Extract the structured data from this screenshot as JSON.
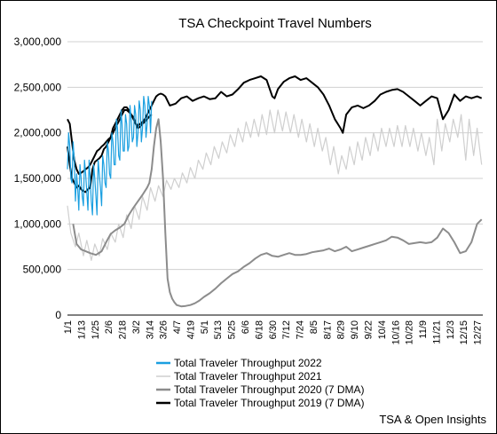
{
  "chart_data": {
    "type": "line",
    "title": "TSA Checkpoint Travel Numbers",
    "source": "TSA & Open Insights",
    "ylim": [
      0,
      3000000
    ],
    "yticks": [
      "0",
      "500,000",
      "1,000,000",
      "1,500,000",
      "2,000,000",
      "2,500,000",
      "3,000,000"
    ],
    "ytick_values": [
      0,
      500000,
      1000000,
      1500000,
      2000000,
      2500000,
      3000000
    ],
    "xticks": [
      "1/1",
      "1/13",
      "1/25",
      "2/6",
      "2/18",
      "3/2",
      "3/14",
      "3/26",
      "4/7",
      "4/19",
      "5/1",
      "5/13",
      "5/25",
      "6/6",
      "6/18",
      "6/30",
      "7/12",
      "7/24",
      "8/5",
      "8/17",
      "8/29",
      "9/10",
      "9/22",
      "10/4",
      "10/16",
      "10/28",
      "11/9",
      "11/21",
      "12/3",
      "12/15",
      "12/27"
    ],
    "xtick_days": [
      0,
      12,
      24,
      36,
      48,
      60,
      72,
      84,
      96,
      108,
      120,
      132,
      144,
      156,
      168,
      180,
      192,
      204,
      216,
      228,
      240,
      252,
      264,
      276,
      288,
      300,
      312,
      324,
      336,
      348,
      360
    ],
    "xlim": [
      0,
      365
    ],
    "grid": "horizontal",
    "legend_position": "bottom",
    "series": [
      {
        "name": "Total Traveler Throughput 2022",
        "color": "#1a9fe0",
        "x": [
          0,
          1,
          2,
          3,
          4,
          5,
          6,
          7,
          8,
          9,
          10,
          11,
          12,
          13,
          14,
          15,
          16,
          17,
          18,
          19,
          20,
          21,
          22,
          23,
          24,
          25,
          26,
          27,
          28,
          29,
          30,
          31,
          32,
          33,
          34,
          35,
          36,
          37,
          38,
          39,
          40,
          41,
          42,
          43,
          44,
          45,
          46,
          47,
          48,
          49,
          50,
          51,
          52,
          53,
          54,
          55,
          56,
          57,
          58,
          59,
          60,
          61,
          62,
          63,
          64,
          65,
          66,
          67,
          68,
          69,
          70,
          71,
          72,
          73,
          74
        ],
        "values": [
          1600000,
          2000000,
          1850000,
          1500000,
          1450000,
          1900000,
          1700000,
          1250000,
          1550000,
          1400000,
          1150000,
          1650000,
          1500000,
          1300000,
          1200000,
          1700000,
          1550000,
          1350000,
          1150000,
          1700000,
          1500000,
          1250000,
          1100000,
          1650000,
          1500000,
          1300000,
          1100000,
          1700000,
          1550000,
          1400000,
          1200000,
          1750000,
          1650000,
          1450000,
          1400000,
          1900000,
          1800000,
          1550000,
          1500000,
          2000000,
          1900000,
          1650000,
          1650000,
          2150000,
          2050000,
          1750000,
          1700000,
          2250000,
          2100000,
          1800000,
          1800000,
          2200000,
          2100000,
          1800000,
          1850000,
          2300000,
          2150000,
          1900000,
          1950000,
          2300000,
          2200000,
          1850000,
          2000000,
          2350000,
          2250000,
          1900000,
          2050000,
          2400000,
          2300000,
          1950000,
          2100000,
          2400000,
          2300000,
          2000000,
          2350000
        ]
      },
      {
        "name": "Total Traveler Throughput 2021",
        "color": "#cfcfcf",
        "x": [
          0,
          3,
          7,
          10,
          14,
          17,
          21,
          24,
          28,
          31,
          35,
          38,
          42,
          45,
          49,
          52,
          56,
          59,
          63,
          66,
          70,
          73,
          77,
          80,
          84,
          87,
          91,
          94,
          98,
          101,
          105,
          108,
          112,
          115,
          119,
          122,
          126,
          129,
          133,
          136,
          140,
          143,
          147,
          150,
          154,
          157,
          161,
          164,
          168,
          171,
          175,
          178,
          182,
          185,
          189,
          192,
          196,
          199,
          203,
          206,
          210,
          213,
          217,
          220,
          224,
          227,
          231,
          234,
          238,
          241,
          245,
          248,
          252,
          255,
          259,
          262,
          266,
          269,
          273,
          276,
          280,
          283,
          287,
          290,
          294,
          297,
          301,
          304,
          308,
          311,
          315,
          318,
          322,
          325,
          329,
          332,
          336,
          339,
          343,
          346,
          350,
          353,
          357,
          360,
          364
        ],
        "values": [
          1200000,
          900000,
          750000,
          900000,
          650000,
          820000,
          600000,
          780000,
          650000,
          840000,
          720000,
          900000,
          800000,
          1000000,
          850000,
          1100000,
          950000,
          1200000,
          1050000,
          1300000,
          1150000,
          1400000,
          1250000,
          1420000,
          1300000,
          1480000,
          1380000,
          1500000,
          1400000,
          1560000,
          1450000,
          1620000,
          1500000,
          1700000,
          1600000,
          1780000,
          1650000,
          1850000,
          1720000,
          1900000,
          1780000,
          1980000,
          1850000,
          2050000,
          1900000,
          2120000,
          1950000,
          2150000,
          1960000,
          2200000,
          1980000,
          2250000,
          2000000,
          2250000,
          2020000,
          2230000,
          2000000,
          2200000,
          1950000,
          2150000,
          1900000,
          2100000,
          1850000,
          2050000,
          1800000,
          1950000,
          1650000,
          1850000,
          1550000,
          1750000,
          1600000,
          1850000,
          1650000,
          1900000,
          1700000,
          1950000,
          1750000,
          2000000,
          1800000,
          2050000,
          1850000,
          2050000,
          1850000,
          2080000,
          1850000,
          2080000,
          1850000,
          2050000,
          1800000,
          2000000,
          1750000,
          1950000,
          1650000,
          2150000,
          1800000,
          2100000,
          1900000,
          2150000,
          1950000,
          2200000,
          1700000,
          2150000,
          1750000,
          2050000,
          1650000
        ]
      },
      {
        "name": "Total Traveler Throughput 2020 (7 DMA)",
        "color": "#8c8c8c",
        "x": [
          5,
          8,
          12,
          16,
          20,
          25,
          30,
          34,
          38,
          42,
          46,
          50,
          54,
          58,
          62,
          66,
          70,
          72,
          74,
          76,
          78,
          80,
          82,
          84,
          86,
          88,
          90,
          92,
          94,
          96,
          100,
          104,
          108,
          112,
          116,
          120,
          125,
          130,
          135,
          140,
          145,
          150,
          155,
          160,
          165,
          170,
          175,
          180,
          185,
          190,
          195,
          200,
          205,
          210,
          215,
          220,
          225,
          230,
          235,
          240,
          245,
          250,
          255,
          260,
          265,
          270,
          275,
          280,
          285,
          290,
          295,
          300,
          305,
          310,
          315,
          320,
          325,
          330,
          335,
          340,
          345,
          350,
          355,
          360,
          364
        ],
        "values": [
          1000000,
          780000,
          720000,
          700000,
          680000,
          660000,
          700000,
          800000,
          890000,
          930000,
          960000,
          1000000,
          1100000,
          1180000,
          1250000,
          1320000,
          1400000,
          1450000,
          1600000,
          1850000,
          2050000,
          2150000,
          1900000,
          1500000,
          900000,
          400000,
          250000,
          180000,
          140000,
          110000,
          95000,
          100000,
          110000,
          130000,
          160000,
          200000,
          240000,
          290000,
          350000,
          400000,
          450000,
          480000,
          530000,
          570000,
          620000,
          660000,
          680000,
          650000,
          640000,
          660000,
          680000,
          660000,
          660000,
          670000,
          690000,
          700000,
          710000,
          730000,
          700000,
          720000,
          750000,
          700000,
          720000,
          740000,
          760000,
          780000,
          800000,
          820000,
          860000,
          850000,
          820000,
          780000,
          790000,
          800000,
          790000,
          800000,
          850000,
          950000,
          900000,
          800000,
          680000,
          700000,
          800000,
          1000000,
          1050000
        ]
      },
      {
        "name": "Total Traveler Throughput 2019 (7 DMA)",
        "color": "#000000",
        "x": [
          0,
          2,
          4,
          6,
          8,
          10,
          12,
          14,
          16,
          18,
          20,
          22,
          24,
          26,
          28,
          30,
          32,
          34,
          36,
          38,
          40,
          42,
          44,
          46,
          48,
          50,
          52,
          54,
          56,
          58,
          60,
          62,
          64,
          66,
          68,
          70,
          72,
          74,
          76,
          78,
          80,
          82,
          84,
          86,
          88,
          90,
          95,
          100,
          105,
          110,
          115,
          120,
          125,
          130,
          135,
          140,
          145,
          150,
          155,
          160,
          165,
          170,
          175,
          180,
          182,
          185,
          190,
          195,
          200,
          205,
          210,
          215,
          220,
          225,
          230,
          235,
          240,
          242,
          245,
          250,
          255,
          260,
          265,
          270,
          275,
          280,
          285,
          290,
          295,
          300,
          305,
          310,
          315,
          320,
          325,
          330,
          335,
          340,
          345,
          350,
          355,
          360,
          364
        ],
        "values": [
          1850000,
          1650000,
          1500000,
          1450000,
          1400000,
          1420000,
          1380000,
          1360000,
          1350000,
          1380000,
          1400000,
          1600000,
          1680000,
          1700000,
          1720000,
          1750000,
          1820000,
          1850000,
          1900000,
          1950000,
          2050000,
          2100000,
          2150000,
          2200000,
          2250000,
          2280000,
          2280000,
          2250000,
          2200000,
          2150000,
          2100000,
          2080000,
          2100000,
          2120000,
          2150000,
          2200000,
          2250000,
          2300000,
          2350000,
          2400000,
          2420000,
          2430000,
          2420000,
          2400000,
          2350000,
          2300000,
          2320000,
          2380000,
          2400000,
          2350000,
          2380000,
          2400000,
          2370000,
          2380000,
          2450000,
          2400000,
          2420000,
          2480000,
          2550000,
          2580000,
          2600000,
          2620000,
          2580000,
          2400000,
          2380000,
          2480000,
          2560000,
          2600000,
          2620000,
          2580000,
          2600000,
          2550000,
          2500000,
          2420000,
          2300000,
          2150000,
          2050000,
          2000000,
          2200000,
          2280000,
          2300000,
          2270000,
          2300000,
          2350000,
          2420000,
          2450000,
          2470000,
          2480000,
          2450000,
          2400000,
          2350000,
          2300000,
          2350000,
          2400000,
          2380000,
          2150000,
          2250000,
          2420000,
          2350000,
          2400000,
          2380000,
          2400000,
          2380000
        ]
      },
      {
        "name": "",
        "color": "#000000",
        "x": [
          0,
          2,
          4,
          6,
          8,
          10,
          12,
          14,
          16,
          18,
          20,
          22,
          24,
          26,
          28,
          30,
          32,
          34,
          36,
          38,
          40,
          42,
          44,
          46,
          48,
          50,
          52,
          54,
          56,
          58,
          60,
          62,
          64,
          66,
          68,
          70,
          72,
          74
        ],
        "values": [
          2150000,
          2100000,
          1900000,
          1700000,
          1600000,
          1550000,
          1560000,
          1580000,
          1600000,
          1620000,
          1650000,
          1700000,
          1750000,
          1800000,
          1820000,
          1850000,
          1870000,
          1900000,
          1930000,
          1950000,
          2000000,
          2050000,
          2100000,
          2150000,
          2200000,
          2250000,
          2250000,
          2230000,
          2200000,
          2170000,
          2100000,
          2050000,
          2070000,
          2100000,
          2120000,
          2150000,
          2180000,
          2200000
        ]
      }
    ]
  }
}
